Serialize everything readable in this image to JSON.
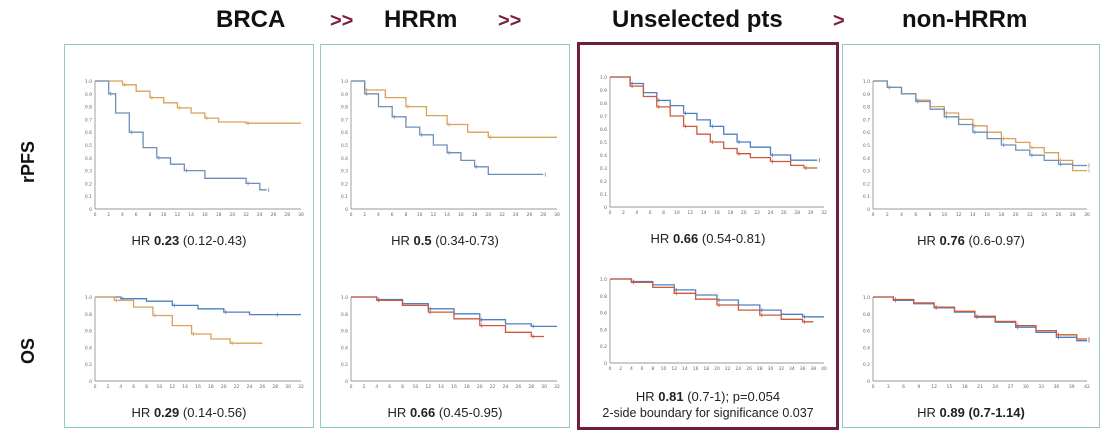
{
  "header": {
    "brca": "BRCA",
    "arrow1": ">>",
    "hrrm": "HRRm",
    "arrow2": ">>",
    "unselected": "Unselected pts",
    "arrow3": ">",
    "nonhrrm": "non-HRRm"
  },
  "rows": {
    "top": "rPFS",
    "bottom": "OS"
  },
  "hr": {
    "brca_rpfs": {
      "label": "HR ",
      "value": "0.23",
      "ci": " (0.12-0.43)"
    },
    "brca_os": {
      "label": "HR ",
      "value": "0.29",
      "ci": " (0.14-0.56)"
    },
    "hrrm_rpfs": {
      "label": "HR ",
      "value": "0.5",
      "ci": " (0.34-0.73)"
    },
    "hrrm_os": {
      "label": "HR ",
      "value": "0.66",
      "ci": " (0.45-0.95)"
    },
    "unsel_rpfs": {
      "label": "HR ",
      "value": "0.66",
      "ci": " (0.54-0.81)"
    },
    "unsel_os": {
      "label": "HR ",
      "value": "0.81",
      "ci": " (0.7-1); p=0.054"
    },
    "unsel_os_note": "2-side boundary for significance 0.037",
    "non_rpfs": {
      "label": "HR ",
      "value": "0.76",
      "ci": " (0.6-0.97)"
    },
    "non_os": {
      "label": "HR ",
      "value": "0.89 (0.7-1.14)",
      "ci": ""
    }
  },
  "colors": {
    "orange": "#d9a15a",
    "blue": "#6e8fb8",
    "red": "#cc5a3a",
    "steelblue": "#4f7fc0",
    "panel_border": "#8fc9c6",
    "highlight": "#6e1f3f",
    "arrow": "#7b1f3d"
  },
  "chart_data": [
    {
      "id": "brca_rpfs",
      "type": "line",
      "ylim": [
        0,
        1
      ],
      "xlim": [
        0,
        30
      ],
      "yticks": [
        "0",
        "0.1",
        "0.2",
        "0.3",
        "0.4",
        "0.5",
        "0.6",
        "0.7",
        "0.8",
        "0.9",
        "1.0"
      ],
      "xticks": [
        "0",
        "2",
        "4",
        "6",
        "8",
        "10",
        "12",
        "14",
        "16",
        "18",
        "20",
        "22",
        "24",
        "26",
        "28",
        "30"
      ],
      "series": [
        {
          "color": "orange",
          "steps": [
            [
              0,
              1
            ],
            [
              4,
              0.97
            ],
            [
              6,
              0.92
            ],
            [
              8,
              0.87
            ],
            [
              10,
              0.83
            ],
            [
              12,
              0.79
            ],
            [
              14,
              0.75
            ],
            [
              16,
              0.71
            ],
            [
              18,
              0.68
            ],
            [
              22,
              0.67
            ],
            [
              30,
              0.67
            ]
          ]
        },
        {
          "color": "blue",
          "steps": [
            [
              0,
              1
            ],
            [
              2,
              0.9
            ],
            [
              3,
              0.75
            ],
            [
              5,
              0.6
            ],
            [
              7,
              0.48
            ],
            [
              9,
              0.4
            ],
            [
              11,
              0.35
            ],
            [
              13,
              0.3
            ],
            [
              16,
              0.24
            ],
            [
              22,
              0.2
            ],
            [
              24,
              0.15
            ],
            [
              25,
              0.15
            ]
          ]
        }
      ]
    },
    {
      "id": "hrrm_rpfs",
      "type": "line",
      "ylim": [
        0,
        1
      ],
      "xlim": [
        0,
        30
      ],
      "yticks": [
        "0",
        "0.1",
        "0.2",
        "0.3",
        "0.4",
        "0.5",
        "0.6",
        "0.7",
        "0.8",
        "0.9",
        "1.0"
      ],
      "xticks": [
        "0",
        "2",
        "4",
        "6",
        "8",
        "10",
        "12",
        "14",
        "16",
        "18",
        "20",
        "22",
        "24",
        "26",
        "28",
        "30"
      ],
      "series": [
        {
          "color": "orange",
          "steps": [
            [
              0,
              1
            ],
            [
              2,
              0.93
            ],
            [
              5,
              0.87
            ],
            [
              8,
              0.8
            ],
            [
              11,
              0.73
            ],
            [
              14,
              0.66
            ],
            [
              17,
              0.6
            ],
            [
              20,
              0.56
            ],
            [
              30,
              0.56
            ]
          ]
        },
        {
          "color": "blue",
          "steps": [
            [
              0,
              1
            ],
            [
              2,
              0.9
            ],
            [
              4,
              0.8
            ],
            [
              6,
              0.72
            ],
            [
              8,
              0.64
            ],
            [
              10,
              0.58
            ],
            [
              12,
              0.5
            ],
            [
              14,
              0.44
            ],
            [
              16,
              0.38
            ],
            [
              18,
              0.33
            ],
            [
              20,
              0.27
            ],
            [
              28,
              0.27
            ]
          ]
        }
      ]
    },
    {
      "id": "unsel_rpfs",
      "type": "line",
      "ylim": [
        0,
        1
      ],
      "xlim": [
        0,
        32
      ],
      "yticks": [
        "0",
        "0.1",
        "0.2",
        "0.3",
        "0.4",
        "0.5",
        "0.6",
        "0.7",
        "0.8",
        "0.9",
        "1.0"
      ],
      "xticks": [
        "0",
        "2",
        "4",
        "6",
        "8",
        "10",
        "12",
        "14",
        "16",
        "18",
        "20",
        "22",
        "24",
        "26",
        "28",
        "30",
        "32"
      ],
      "series": [
        {
          "color": "steelblue",
          "steps": [
            [
              0,
              1
            ],
            [
              3,
              0.95
            ],
            [
              5,
              0.88
            ],
            [
              7,
              0.82
            ],
            [
              9,
              0.78
            ],
            [
              11,
              0.72
            ],
            [
              13,
              0.67
            ],
            [
              15,
              0.62
            ],
            [
              17,
              0.56
            ],
            [
              19,
              0.5
            ],
            [
              21,
              0.46
            ],
            [
              24,
              0.4
            ],
            [
              27,
              0.36
            ],
            [
              31,
              0.36
            ]
          ]
        },
        {
          "color": "red",
          "steps": [
            [
              0,
              1
            ],
            [
              3,
              0.93
            ],
            [
              5,
              0.85
            ],
            [
              7,
              0.77
            ],
            [
              9,
              0.7
            ],
            [
              11,
              0.62
            ],
            [
              13,
              0.56
            ],
            [
              15,
              0.5
            ],
            [
              17,
              0.45
            ],
            [
              19,
              0.41
            ],
            [
              21,
              0.38
            ],
            [
              24,
              0.35
            ],
            [
              27,
              0.32
            ],
            [
              29,
              0.3
            ],
            [
              31,
              0.3
            ]
          ]
        }
      ]
    },
    {
      "id": "non_rpfs",
      "type": "line",
      "ylim": [
        0,
        1
      ],
      "xlim": [
        0,
        30
      ],
      "yticks": [
        "0",
        "0.1",
        "0.2",
        "0.3",
        "0.4",
        "0.5",
        "0.6",
        "0.7",
        "0.8",
        "0.9",
        "1.0"
      ],
      "xticks": [
        "0",
        "2",
        "4",
        "6",
        "8",
        "10",
        "12",
        "14",
        "16",
        "18",
        "20",
        "22",
        "24",
        "26",
        "28",
        "30"
      ],
      "series": [
        {
          "color": "orange",
          "steps": [
            [
              0,
              1
            ],
            [
              2,
              0.95
            ],
            [
              4,
              0.9
            ],
            [
              6,
              0.85
            ],
            [
              8,
              0.8
            ],
            [
              10,
              0.75
            ],
            [
              12,
              0.7
            ],
            [
              14,
              0.65
            ],
            [
              16,
              0.6
            ],
            [
              18,
              0.55
            ],
            [
              20,
              0.52
            ],
            [
              22,
              0.48
            ],
            [
              24,
              0.44
            ],
            [
              26,
              0.38
            ],
            [
              28,
              0.3
            ],
            [
              30,
              0.3
            ]
          ]
        },
        {
          "color": "blue",
          "steps": [
            [
              0,
              1
            ],
            [
              2,
              0.95
            ],
            [
              4,
              0.9
            ],
            [
              6,
              0.84
            ],
            [
              8,
              0.78
            ],
            [
              10,
              0.72
            ],
            [
              12,
              0.66
            ],
            [
              14,
              0.6
            ],
            [
              16,
              0.55
            ],
            [
              18,
              0.5
            ],
            [
              20,
              0.46
            ],
            [
              22,
              0.42
            ],
            [
              24,
              0.38
            ],
            [
              26,
              0.35
            ],
            [
              28,
              0.34
            ],
            [
              30,
              0.34
            ]
          ]
        }
      ]
    },
    {
      "id": "brca_os",
      "type": "line",
      "ylim": [
        0,
        1
      ],
      "xlim": [
        0,
        32
      ],
      "yticks": [
        "0",
        "0.1",
        "0.2",
        "0.3",
        "0.4",
        "0.5",
        "0.6",
        "0.7",
        "0.8",
        "0.9",
        "1.0"
      ],
      "xticks": [
        "0",
        "2",
        "4",
        "6",
        "8",
        "10",
        "12",
        "14",
        "16",
        "18",
        "20",
        "22",
        "24",
        "26",
        "28",
        "30",
        "32"
      ],
      "series": [
        {
          "color": "steelblue",
          "steps": [
            [
              0,
              1
            ],
            [
              4,
              0.98
            ],
            [
              8,
              0.95
            ],
            [
              12,
              0.9
            ],
            [
              16,
              0.86
            ],
            [
              20,
              0.82
            ],
            [
              24,
              0.79
            ],
            [
              28,
              0.79
            ],
            [
              32,
              0.79
            ]
          ]
        },
        {
          "color": "orange",
          "steps": [
            [
              0,
              1
            ],
            [
              3,
              0.96
            ],
            [
              6,
              0.88
            ],
            [
              9,
              0.78
            ],
            [
              12,
              0.66
            ],
            [
              15,
              0.56
            ],
            [
              18,
              0.5
            ],
            [
              21,
              0.45
            ],
            [
              26,
              0.45
            ]
          ]
        }
      ]
    },
    {
      "id": "hrrm_os",
      "type": "line",
      "ylim": [
        0,
        1
      ],
      "xlim": [
        0,
        32
      ],
      "yticks": [
        "0",
        "0.1",
        "0.2",
        "0.3",
        "0.4",
        "0.5",
        "0.6",
        "0.7",
        "0.8",
        "0.9",
        "1.0"
      ],
      "xticks": [
        "0",
        "2",
        "4",
        "6",
        "8",
        "10",
        "12",
        "14",
        "16",
        "18",
        "20",
        "22",
        "24",
        "26",
        "28",
        "30",
        "32"
      ],
      "series": [
        {
          "color": "steelblue",
          "steps": [
            [
              0,
              1
            ],
            [
              4,
              0.97
            ],
            [
              8,
              0.92
            ],
            [
              12,
              0.86
            ],
            [
              16,
              0.8
            ],
            [
              20,
              0.73
            ],
            [
              24,
              0.68
            ],
            [
              28,
              0.65
            ],
            [
              32,
              0.65
            ]
          ]
        },
        {
          "color": "red",
          "steps": [
            [
              0,
              1
            ],
            [
              4,
              0.96
            ],
            [
              8,
              0.9
            ],
            [
              12,
              0.82
            ],
            [
              16,
              0.74
            ],
            [
              20,
              0.66
            ],
            [
              24,
              0.58
            ],
            [
              28,
              0.53
            ],
            [
              30,
              0.53
            ]
          ]
        }
      ]
    },
    {
      "id": "unsel_os",
      "type": "line",
      "ylim": [
        0,
        1
      ],
      "xlim": [
        0,
        40
      ],
      "yticks": [
        "0",
        "0.1",
        "0.2",
        "0.3",
        "0.4",
        "0.5",
        "0.6",
        "0.7",
        "0.8",
        "0.9",
        "1.0"
      ],
      "xticks": [
        "0",
        "2",
        "4",
        "6",
        "8",
        "10",
        "12",
        "14",
        "16",
        "18",
        "20",
        "22",
        "24",
        "26",
        "28",
        "30",
        "32",
        "34",
        "36",
        "38",
        "40"
      ],
      "series": [
        {
          "color": "steelblue",
          "steps": [
            [
              0,
              1
            ],
            [
              4,
              0.97
            ],
            [
              8,
              0.93
            ],
            [
              12,
              0.87
            ],
            [
              16,
              0.81
            ],
            [
              20,
              0.75
            ],
            [
              24,
              0.69
            ],
            [
              28,
              0.63
            ],
            [
              32,
              0.58
            ],
            [
              36,
              0.55
            ],
            [
              40,
              0.55
            ]
          ]
        },
        {
          "color": "red",
          "steps": [
            [
              0,
              1
            ],
            [
              4,
              0.96
            ],
            [
              8,
              0.9
            ],
            [
              12,
              0.83
            ],
            [
              16,
              0.76
            ],
            [
              20,
              0.69
            ],
            [
              24,
              0.63
            ],
            [
              28,
              0.57
            ],
            [
              32,
              0.52
            ],
            [
              36,
              0.49
            ],
            [
              38,
              0.49
            ]
          ]
        }
      ]
    },
    {
      "id": "non_os",
      "type": "line",
      "ylim": [
        0,
        1
      ],
      "xlim": [
        0,
        42
      ],
      "yticks": [
        "0",
        "0.1",
        "0.2",
        "0.3",
        "0.4",
        "0.5",
        "0.6",
        "0.7",
        "0.8",
        "0.9",
        "1.0"
      ],
      "xticks": [
        "0",
        "3",
        "6",
        "9",
        "12",
        "15",
        "18",
        "21",
        "24",
        "27",
        "30",
        "33",
        "36",
        "39",
        "42"
      ],
      "series": [
        {
          "color": "steelblue",
          "steps": [
            [
              0,
              1
            ],
            [
              4,
              0.96
            ],
            [
              8,
              0.92
            ],
            [
              12,
              0.87
            ],
            [
              16,
              0.82
            ],
            [
              20,
              0.76
            ],
            [
              24,
              0.7
            ],
            [
              28,
              0.64
            ],
            [
              32,
              0.58
            ],
            [
              36,
              0.52
            ],
            [
              40,
              0.48
            ],
            [
              42,
              0.48
            ]
          ]
        },
        {
          "color": "red",
          "steps": [
            [
              0,
              1
            ],
            [
              4,
              0.97
            ],
            [
              8,
              0.93
            ],
            [
              12,
              0.88
            ],
            [
              16,
              0.83
            ],
            [
              20,
              0.77
            ],
            [
              24,
              0.71
            ],
            [
              28,
              0.66
            ],
            [
              32,
              0.6
            ],
            [
              36,
              0.55
            ],
            [
              40,
              0.5
            ],
            [
              42,
              0.5
            ]
          ]
        }
      ]
    }
  ]
}
